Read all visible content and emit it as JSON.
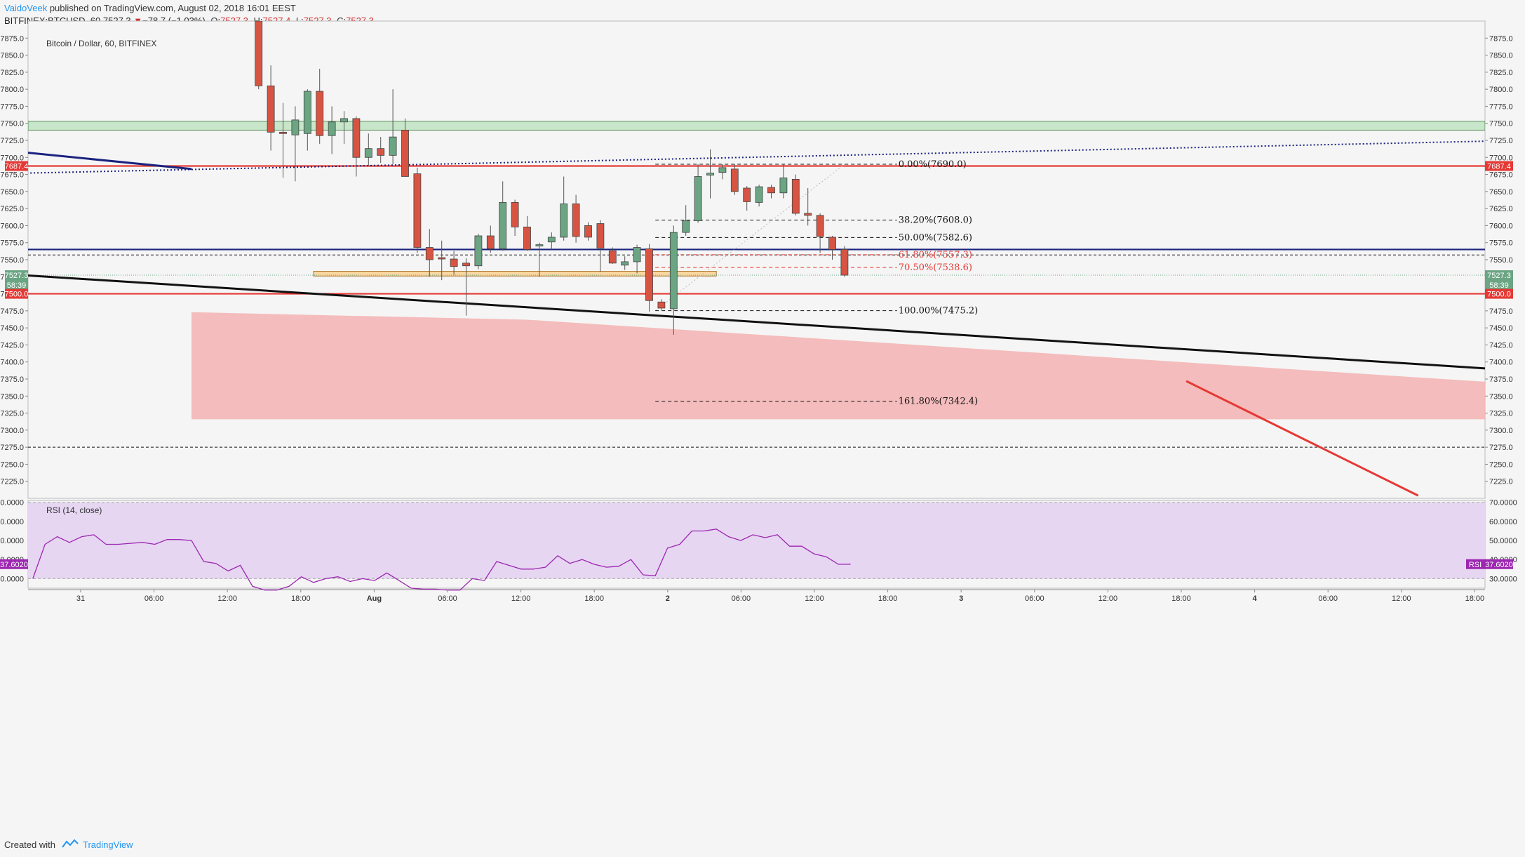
{
  "header": {
    "author": "VaidoVeek",
    "published": "published on TradingView.com, August 02, 2018 16:01 EEST",
    "symbol": "BITFINEX:BTCUSD, 60",
    "last": "7527.3",
    "change": "−78.7 (−1.03%)",
    "o_label": "O:",
    "o": "7527.3",
    "h_label": "H:",
    "h": "7527.4",
    "l_label": "L:",
    "l": "7527.3",
    "c_label": "C:",
    "c": "7527.3"
  },
  "footer": {
    "created_with": "Created with",
    "brand": "TradingView"
  },
  "colors": {
    "up": "#6ba583",
    "down": "#d75442",
    "resistance": "#e53935",
    "support_blue": "#1a237e",
    "trend_black": "#111111",
    "zone_green": "#c8e6c9",
    "zone_red": "#f4b6b6",
    "zone_orange": "#fbd7a0",
    "rsi_bg": "#e6d6f2",
    "rsi_line": "#9c27b0"
  },
  "chart_data": [
    {
      "type": "candlestick",
      "title": "Bitcoin / Dollar, 60, BITFINEX",
      "ylim": [
        7200,
        7900
      ],
      "y_ticks": [
        "7875.0",
        "7850.0",
        "7825.0",
        "7800.0",
        "7775.0",
        "7750.0",
        "7725.0",
        "7700.0",
        "7675.0",
        "7650.0",
        "7625.0",
        "7600.0",
        "7575.0",
        "7550.0",
        "7525.0",
        "7500.0",
        "7475.0",
        "7450.0",
        "7425.0",
        "7400.0",
        "7375.0",
        "7350.0",
        "7325.0",
        "7300.0",
        "7275.0",
        "7250.0",
        "7225.0"
      ],
      "x_ticks": [
        "31",
        "06:00",
        "12:00",
        "18:00",
        "Aug",
        "06:00",
        "12:00",
        "18:00",
        "2",
        "06:00",
        "12:00",
        "18:00",
        "3",
        "06:00",
        "12:00",
        "18:00",
        "4",
        "06:00",
        "12:00",
        "18:00"
      ],
      "price_labels": [
        {
          "text": "7687.4",
          "value": 7687.4,
          "color": "#e53935"
        },
        {
          "text": "7527.3",
          "value": 7527.3,
          "color": "#6ba583"
        },
        {
          "text": "58:39",
          "value": 7513,
          "color": "#6ba583"
        },
        {
          "text": "7500.0",
          "value": 7500.0,
          "color": "#e53935"
        }
      ],
      "candles": [
        {
          "t": 18,
          "o": 7900,
          "h": 7905,
          "l": 7800,
          "c": 7805
        },
        {
          "t": 19,
          "o": 7805,
          "h": 7835,
          "l": 7710,
          "c": 7737
        },
        {
          "t": 20,
          "o": 7737,
          "h": 7780,
          "l": 7670,
          "c": 7735
        },
        {
          "t": 21,
          "o": 7733,
          "h": 7775,
          "l": 7665,
          "c": 7755
        },
        {
          "t": 22,
          "o": 7735,
          "h": 7800,
          "l": 7710,
          "c": 7797
        },
        {
          "t": 23,
          "o": 7797,
          "h": 7830,
          "l": 7720,
          "c": 7732
        },
        {
          "t": 24,
          "o": 7732,
          "h": 7775,
          "l": 7705,
          "c": 7752
        },
        {
          "t": 25,
          "o": 7752,
          "h": 7768,
          "l": 7720,
          "c": 7757
        },
        {
          "t": 26,
          "o": 7757,
          "h": 7760,
          "l": 7672,
          "c": 7700
        },
        {
          "t": 27,
          "o": 7700,
          "h": 7735,
          "l": 7688,
          "c": 7713
        },
        {
          "t": 28,
          "o": 7713,
          "h": 7730,
          "l": 7692,
          "c": 7703
        },
        {
          "t": 29,
          "o": 7703,
          "h": 7800,
          "l": 7690,
          "c": 7730
        },
        {
          "t": 30,
          "o": 7740,
          "h": 7757,
          "l": 7672,
          "c": 7672
        },
        {
          "t": 31,
          "o": 7676,
          "h": 7685,
          "l": 7560,
          "c": 7568
        },
        {
          "t": 32,
          "o": 7568,
          "h": 7595,
          "l": 7525,
          "c": 7550
        },
        {
          "t": 33,
          "o": 7553,
          "h": 7578,
          "l": 7520,
          "c": 7551
        },
        {
          "t": 34,
          "o": 7551,
          "h": 7563,
          "l": 7528,
          "c": 7540
        },
        {
          "t": 35,
          "o": 7545,
          "h": 7552,
          "l": 7468,
          "c": 7541
        },
        {
          "t": 36,
          "o": 7541,
          "h": 7588,
          "l": 7536,
          "c": 7585
        },
        {
          "t": 37,
          "o": 7585,
          "h": 7600,
          "l": 7560,
          "c": 7566
        },
        {
          "t": 38,
          "o": 7566,
          "h": 7665,
          "l": 7563,
          "c": 7634
        },
        {
          "t": 39,
          "o": 7634,
          "h": 7638,
          "l": 7585,
          "c": 7598
        },
        {
          "t": 40,
          "o": 7598,
          "h": 7614,
          "l": 7563,
          "c": 7565
        },
        {
          "t": 41,
          "o": 7570,
          "h": 7575,
          "l": 7525,
          "c": 7572
        },
        {
          "t": 42,
          "o": 7576,
          "h": 7590,
          "l": 7565,
          "c": 7583
        },
        {
          "t": 43,
          "o": 7583,
          "h": 7672,
          "l": 7578,
          "c": 7632
        },
        {
          "t": 44,
          "o": 7632,
          "h": 7645,
          "l": 7575,
          "c": 7584
        },
        {
          "t": 45,
          "o": 7600,
          "h": 7605,
          "l": 7578,
          "c": 7583
        },
        {
          "t": 46,
          "o": 7603,
          "h": 7608,
          "l": 7532,
          "c": 7567
        },
        {
          "t": 47,
          "o": 7563,
          "h": 7568,
          "l": 7544,
          "c": 7545
        },
        {
          "t": 48,
          "o": 7542,
          "h": 7555,
          "l": 7535,
          "c": 7547
        },
        {
          "t": 49,
          "o": 7547,
          "h": 7572,
          "l": 7530,
          "c": 7568
        },
        {
          "t": 50,
          "o": 7566,
          "h": 7573,
          "l": 7474,
          "c": 7490
        },
        {
          "t": 51,
          "o": 7488,
          "h": 7492,
          "l": 7476,
          "c": 7479
        },
        {
          "t": 52,
          "o": 7478,
          "h": 7600,
          "l": 7440,
          "c": 7590
        },
        {
          "t": 53,
          "o": 7590,
          "h": 7630,
          "l": 7585,
          "c": 7607
        },
        {
          "t": 54,
          "o": 7607,
          "h": 7690,
          "l": 7604,
          "c": 7672
        },
        {
          "t": 55,
          "o": 7674,
          "h": 7712,
          "l": 7640,
          "c": 7677
        },
        {
          "t": 56,
          "o": 7678,
          "h": 7690,
          "l": 7668,
          "c": 7685
        },
        {
          "t": 57,
          "o": 7683,
          "h": 7690,
          "l": 7645,
          "c": 7650
        },
        {
          "t": 58,
          "o": 7655,
          "h": 7658,
          "l": 7622,
          "c": 7635
        },
        {
          "t": 59,
          "o": 7634,
          "h": 7660,
          "l": 7628,
          "c": 7657
        },
        {
          "t": 60,
          "o": 7656,
          "h": 7660,
          "l": 7640,
          "c": 7648
        },
        {
          "t": 61,
          "o": 7648,
          "h": 7690,
          "l": 7640,
          "c": 7670
        },
        {
          "t": 62,
          "o": 7668,
          "h": 7675,
          "l": 7615,
          "c": 7618
        },
        {
          "t": 63,
          "o": 7618,
          "h": 7655,
          "l": 7600,
          "c": 7615
        },
        {
          "t": 64,
          "o": 7615,
          "h": 7618,
          "l": 7560,
          "c": 7584
        },
        {
          "t": 65,
          "o": 7583,
          "h": 7585,
          "l": 7550,
          "c": 7565
        },
        {
          "t": 66,
          "o": 7565,
          "h": 7570,
          "l": 7525,
          "c": 7527.3
        }
      ],
      "horizontal_levels": [
        {
          "value": 7687.4,
          "color": "#e53935",
          "style": "solid"
        },
        {
          "value": 7500.0,
          "color": "#e53935",
          "style": "solid"
        },
        {
          "value": 7565,
          "color": "#1a237e",
          "style": "solid"
        },
        {
          "value": 7557,
          "color": "#111111",
          "style": "dashed"
        },
        {
          "value": 7275,
          "color": "#111111",
          "style": "dashed"
        }
      ],
      "zones": [
        {
          "kind": "green",
          "y1": 7753,
          "y2": 7740
        },
        {
          "kind": "orange",
          "y1": 7533,
          "y2": 7526
        }
      ],
      "fibonacci": [
        {
          "label": "0.00%(7690.0)",
          "value": 7690.0,
          "color": "#111111"
        },
        {
          "label": "38.20%(7608.0)",
          "value": 7608.0,
          "color": "#111111"
        },
        {
          "label": "50.00%(7582.6)",
          "value": 7582.6,
          "color": "#111111"
        },
        {
          "label": "61.80%(7557.3)",
          "value": 7557.3,
          "color": "#e53935"
        },
        {
          "label": "70.50%(7538.6)",
          "value": 7538.6,
          "color": "#e53935"
        },
        {
          "label": "100.00%(7475.2)",
          "value": 7475.2,
          "color": "#111111"
        },
        {
          "label": "161.80%(7342.4)",
          "value": 7342.4,
          "color": "#111111"
        }
      ],
      "trendlines": [
        {
          "from": [
            -1,
            7707
          ],
          "to": [
            12.5,
            7683
          ],
          "color": "#1a237e",
          "style": "solid"
        },
        {
          "from": [
            -1,
            7677
          ],
          "to": [
            119,
            7724
          ],
          "color": "#1a237e",
          "style": "dotted"
        },
        {
          "from": [
            -1,
            7527
          ],
          "to": [
            119,
            7390
          ],
          "color": "#111111",
          "style": "solid"
        },
        {
          "from": [
            94,
            7372
          ],
          "to": [
            113,
            7204
          ],
          "color": "#e53935",
          "style": "solid"
        }
      ]
    },
    {
      "type": "line",
      "title": "RSI (14, close)",
      "ylim": [
        25,
        71
      ],
      "y_ticks": [
        "70.0000",
        "60.0000",
        "50.0000",
        "40.0000",
        "30.0000"
      ],
      "bands": [
        70,
        30
      ],
      "last_value": "37.6020",
      "last_value_label": "RSI",
      "series": [
        {
          "values": [
            {
              "t": 0,
              "v": 30
            },
            {
              "t": 1,
              "v": 48
            },
            {
              "t": 2,
              "v": 52
            },
            {
              "t": 3,
              "v": 49
            },
            {
              "t": 4,
              "v": 52
            },
            {
              "t": 5,
              "v": 53
            },
            {
              "t": 6,
              "v": 48
            },
            {
              "t": 7,
              "v": 48
            },
            {
              "t": 8,
              "v": 48.5
            },
            {
              "t": 9,
              "v": 49
            },
            {
              "t": 10,
              "v": 48
            },
            {
              "t": 11,
              "v": 50.5
            },
            {
              "t": 12,
              "v": 50.5
            },
            {
              "t": 13,
              "v": 50
            },
            {
              "t": 14,
              "v": 39
            },
            {
              "t": 15,
              "v": 38
            },
            {
              "t": 16,
              "v": 34
            },
            {
              "t": 17,
              "v": 37
            },
            {
              "t": 18,
              "v": 26
            },
            {
              "t": 19,
              "v": 24
            },
            {
              "t": 20,
              "v": 24
            },
            {
              "t": 21,
              "v": 26
            },
            {
              "t": 22,
              "v": 31
            },
            {
              "t": 23,
              "v": 28
            },
            {
              "t": 24,
              "v": 30
            },
            {
              "t": 25,
              "v": 31
            },
            {
              "t": 26,
              "v": 28.5
            },
            {
              "t": 27,
              "v": 30
            },
            {
              "t": 28,
              "v": 29
            },
            {
              "t": 29,
              "v": 33
            },
            {
              "t": 30,
              "v": 29
            },
            {
              "t": 31,
              "v": 25
            },
            {
              "t": 32,
              "v": 24.5
            },
            {
              "t": 33,
              "v": 24.5
            },
            {
              "t": 34,
              "v": 24
            },
            {
              "t": 35,
              "v": 24
            },
            {
              "t": 36,
              "v": 30
            },
            {
              "t": 37,
              "v": 29
            },
            {
              "t": 38,
              "v": 39
            },
            {
              "t": 39,
              "v": 37
            },
            {
              "t": 40,
              "v": 35
            },
            {
              "t": 41,
              "v": 35
            },
            {
              "t": 42,
              "v": 36
            },
            {
              "t": 43,
              "v": 42
            },
            {
              "t": 44,
              "v": 38
            },
            {
              "t": 45,
              "v": 40
            },
            {
              "t": 46,
              "v": 37.5
            },
            {
              "t": 47,
              "v": 36
            },
            {
              "t": 48,
              "v": 36.5
            },
            {
              "t": 49,
              "v": 40
            },
            {
              "t": 50,
              "v": 32
            },
            {
              "t": 51,
              "v": 31.5
            },
            {
              "t": 52,
              "v": 46
            },
            {
              "t": 53,
              "v": 48
            },
            {
              "t": 54,
              "v": 55
            },
            {
              "t": 55,
              "v": 55
            },
            {
              "t": 56,
              "v": 56
            },
            {
              "t": 57,
              "v": 52
            },
            {
              "t": 58,
              "v": 50
            },
            {
              "t": 59,
              "v": 53
            },
            {
              "t": 60,
              "v": 51.5
            },
            {
              "t": 61,
              "v": 53
            },
            {
              "t": 62,
              "v": 47
            },
            {
              "t": 63,
              "v": 47
            },
            {
              "t": 64,
              "v": 43
            },
            {
              "t": 65,
              "v": 41.5
            },
            {
              "t": 66,
              "v": 37.5
            },
            {
              "t": 67,
              "v": 37.6
            }
          ]
        }
      ]
    }
  ]
}
